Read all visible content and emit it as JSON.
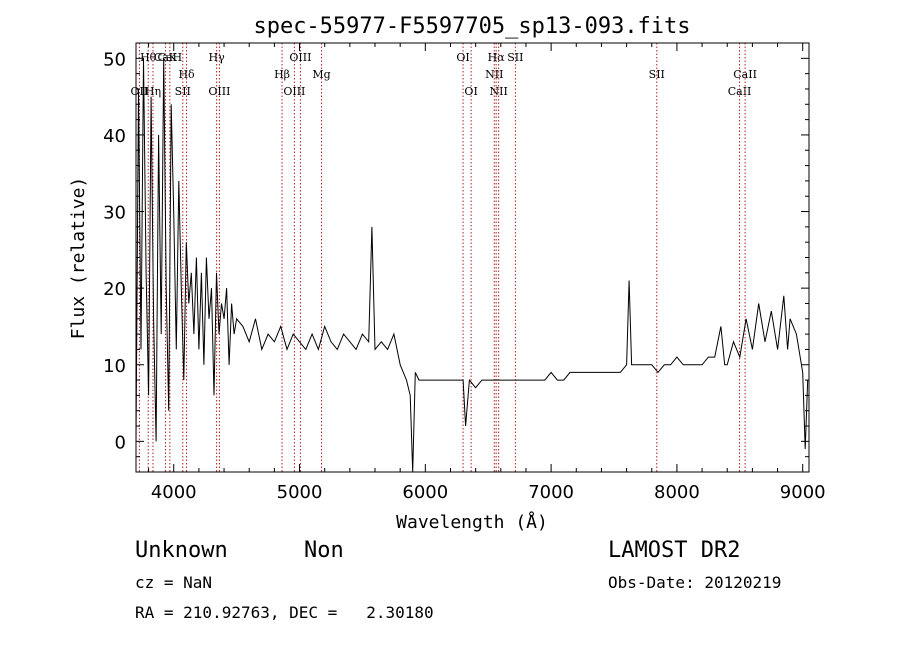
{
  "chart_data": {
    "type": "line",
    "title": "spec-55977-F5597705_sp13-093.fits",
    "xlabel": "Wavelength (Å)",
    "ylabel": "Flux (relative)",
    "xlim": [
      3700,
      9050
    ],
    "ylim": [
      -4,
      52
    ],
    "xticks": [
      4000,
      5000,
      6000,
      7000,
      8000,
      9000
    ],
    "yticks": [
      0,
      10,
      20,
      30,
      40,
      50
    ],
    "grid": false,
    "series": [
      {
        "values_note": "",
        "x": [
          3700,
          3720,
          3740,
          3760,
          3780,
          3800,
          3820,
          3840,
          3860,
          3880,
          3900,
          3920,
          3940,
          3960,
          3980,
          4000,
          4020,
          4040,
          4060,
          4080,
          4100,
          4120,
          4140,
          4160,
          4180,
          4200,
          4220,
          4240,
          4260,
          4280,
          4300,
          4320,
          4340,
          4360,
          4380,
          4400,
          4420,
          4440,
          4460,
          4480,
          4500,
          4550,
          4600,
          4650,
          4700,
          4750,
          4800,
          4850,
          4900,
          4950,
          5000,
          5050,
          5100,
          5150,
          5200,
          5250,
          5300,
          5350,
          5400,
          5450,
          5500,
          5550,
          5575,
          5600,
          5650,
          5700,
          5750,
          5800,
          5850,
          5880,
          5900,
          5920,
          5950,
          6000,
          6050,
          6100,
          6150,
          6200,
          6250,
          6300,
          6320,
          6350,
          6400,
          6450,
          6500,
          6550,
          6600,
          6650,
          6700,
          6750,
          6800,
          6850,
          6900,
          6950,
          7000,
          7050,
          7100,
          7150,
          7200,
          7250,
          7300,
          7350,
          7400,
          7450,
          7500,
          7550,
          7600,
          7620,
          7640,
          7660,
          7700,
          7750,
          7800,
          7850,
          7900,
          7950,
          8000,
          8050,
          8100,
          8150,
          8200,
          8250,
          8300,
          8350,
          8380,
          8400,
          8450,
          8500,
          8550,
          8600,
          8650,
          8700,
          8750,
          8800,
          8850,
          8880,
          8900,
          8950,
          9000,
          9020,
          9040
        ],
        "y": [
          0,
          46,
          12,
          50,
          22,
          6,
          45,
          16,
          0,
          40,
          14,
          50,
          20,
          4,
          44,
          30,
          12,
          34,
          20,
          8,
          26,
          18,
          22,
          14,
          24,
          12,
          22,
          10,
          24,
          16,
          20,
          6,
          22,
          14,
          18,
          16,
          20,
          10,
          18,
          14,
          16,
          15,
          13,
          16,
          12,
          14,
          13,
          15,
          12,
          14,
          13,
          12,
          14,
          12,
          15,
          13,
          12,
          14,
          13,
          12,
          14,
          13,
          28,
          12,
          13,
          12,
          14,
          10,
          8,
          6,
          -4,
          9,
          8,
          8,
          8,
          8,
          8,
          8,
          8,
          8,
          2,
          8,
          7,
          8,
          8,
          8,
          8,
          8,
          8,
          8,
          8,
          8,
          8,
          8,
          9,
          8,
          8,
          9,
          9,
          9,
          9,
          9,
          9,
          9,
          9,
          9,
          10,
          21,
          10,
          10,
          10,
          10,
          10,
          9,
          10,
          10,
          11,
          10,
          10,
          10,
          10,
          11,
          11,
          15,
          10,
          10,
          13,
          11,
          16,
          12,
          18,
          13,
          17,
          12,
          19,
          12,
          16,
          14,
          9,
          -1,
          8
        ]
      }
    ],
    "lines": [
      {
        "label": "OII",
        "x": 3727,
        "row": "lower"
      },
      {
        "label": "Hθ",
        "x": 3797,
        "row": "upper"
      },
      {
        "label": "Hη",
        "x": 3835,
        "row": "lower"
      },
      {
        "label": "CaK",
        "x": 3934,
        "row": "upper"
      },
      {
        "label": "CaH",
        "x": 3969,
        "row": "upper"
      },
      {
        "label": "Hδ",
        "x": 4102,
        "row": "middle"
      },
      {
        "label": "SII",
        "x": 4072,
        "row": "lower"
      },
      {
        "label": "Hγ",
        "x": 4341,
        "row": "upper"
      },
      {
        "label": "OIII",
        "x": 4363,
        "row": "lower"
      },
      {
        "label": "Hβ",
        "x": 4861,
        "row": "middle"
      },
      {
        "label": "OIII",
        "x": 4959,
        "row": "lower"
      },
      {
        "label": "OIII",
        "x": 5007,
        "row": "upper"
      },
      {
        "label": "Mg",
        "x": 5175,
        "row": "middle"
      },
      {
        "label": "OI",
        "x": 6300,
        "row": "upper"
      },
      {
        "label": "OI",
        "x": 6364,
        "row": "lower"
      },
      {
        "label": "NII",
        "x": 6548,
        "row": "middle"
      },
      {
        "label": "Hα",
        "x": 6563,
        "row": "upper"
      },
      {
        "label": "NII",
        "x": 6583,
        "row": "lower"
      },
      {
        "label": "SII",
        "x": 6716,
        "row": "upper"
      },
      {
        "label": "SII",
        "x": 7840,
        "row": "middle"
      },
      {
        "label": "CaII",
        "x": 8498,
        "row": "lower"
      },
      {
        "label": "CaII",
        "x": 8542,
        "row": "middle"
      }
    ]
  },
  "info": {
    "class": "Unknown",
    "subclass": "Non",
    "survey": "LAMOST DR2",
    "cz": "cz = NaN",
    "obs_date": "Obs-Date: 20120219",
    "radec": "RA = 210.92763, DEC =   2.30180"
  },
  "colors": {
    "line_marker": "#b22222",
    "spectrum": "#000000"
  }
}
